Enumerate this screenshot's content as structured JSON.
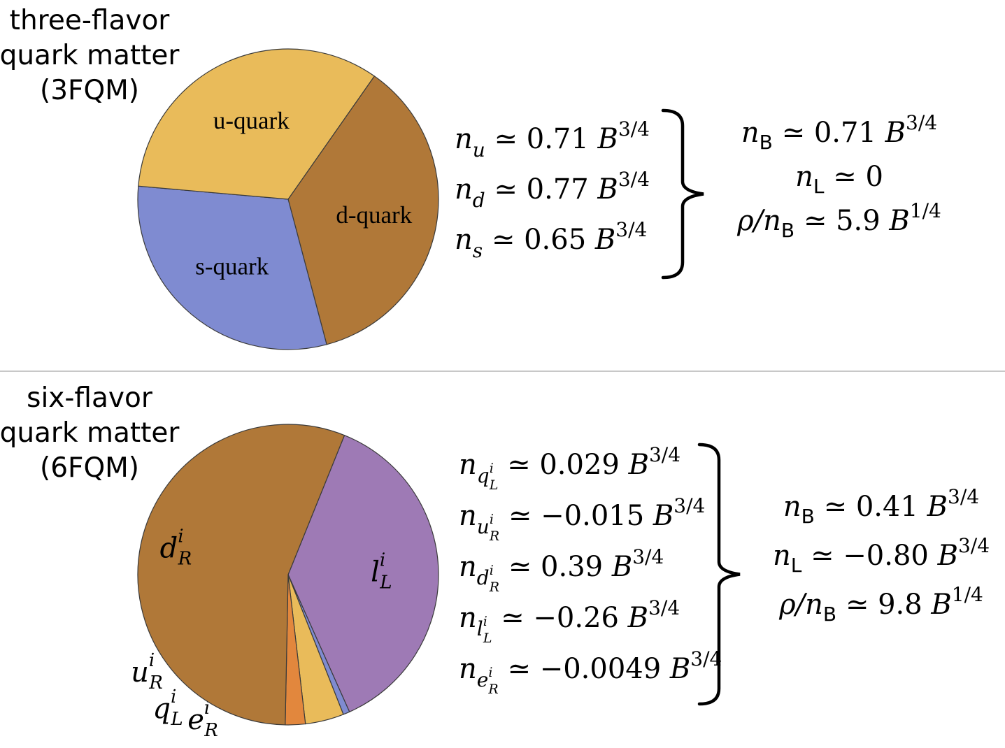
{
  "chart_data": [
    {
      "type": "pie",
      "title_lines": [
        "three-flavor",
        "quark matter",
        "(3FQM)"
      ],
      "start_angle_deg": 55,
      "direction": "clockwise",
      "slices": [
        {
          "label": "d-quark",
          "math": null,
          "value": 0.77,
          "color": "#b07838"
        },
        {
          "label": "s-quark",
          "math": null,
          "value": 0.65,
          "color": "#7f8bd1"
        },
        {
          "label": "u-quark",
          "math": null,
          "value": 0.71,
          "color": "#e9bb5a"
        }
      ],
      "densities": [
        {
          "sym": "n",
          "sub": "u",
          "subsub": null,
          "subsup": null,
          "rel": "≃",
          "value": "0.71",
          "unit": "B",
          "exp": "3/4"
        },
        {
          "sym": "n",
          "sub": "d",
          "subsub": null,
          "subsup": null,
          "rel": "≃",
          "value": "0.77",
          "unit": "B",
          "exp": "3/4"
        },
        {
          "sym": "n",
          "sub": "s",
          "subsub": null,
          "subsup": null,
          "rel": "≃",
          "value": "0.65",
          "unit": "B",
          "exp": "3/4"
        }
      ],
      "totals": [
        {
          "pre": "",
          "sym": "n",
          "sub": "B",
          "rel": "≃",
          "value": "0.71",
          "unit": "B",
          "exp": "3/4"
        },
        {
          "pre": "",
          "sym": "n",
          "sub": "L",
          "rel": "≃",
          "value": "0",
          "unit": "",
          "exp": ""
        },
        {
          "pre": "ρ/",
          "sym": "n",
          "sub": "B",
          "rel": "≃",
          "value": "5.9",
          "unit": "B",
          "exp": "1/4"
        }
      ]
    },
    {
      "type": "pie",
      "title_lines": [
        "six-flavor",
        "quark matter",
        "(6FQM)"
      ],
      "start_angle_deg": 68,
      "direction": "clockwise",
      "slices": [
        {
          "label": "l_L^i",
          "math": {
            "base": "l",
            "sub": "L",
            "sup": "i"
          },
          "value": 0.26,
          "color": "#9e7ab5"
        },
        {
          "label": "e_R^i",
          "math": {
            "base": "e",
            "sub": "R",
            "sup": "i"
          },
          "value": 0.0049,
          "color": "#7f8bd1"
        },
        {
          "label": "q_L^i",
          "math": {
            "base": "q",
            "sub": "L",
            "sup": "i"
          },
          "value": 0.029,
          "color": "#e9bb5a"
        },
        {
          "label": "u_R^i",
          "math": {
            "base": "u",
            "sub": "R",
            "sup": "i"
          },
          "value": 0.015,
          "color": "#e2873d"
        },
        {
          "label": "d_R^i",
          "math": {
            "base": "d",
            "sub": "R",
            "sup": "i"
          },
          "value": 0.39,
          "color": "#b07838"
        }
      ],
      "densities": [
        {
          "sym": "n",
          "sub": "q",
          "subsub": "L",
          "subsup": "i",
          "rel": "≃",
          "value": "0.029",
          "unit": "B",
          "exp": "3/4"
        },
        {
          "sym": "n",
          "sub": "u",
          "subsub": "R",
          "subsup": "i",
          "rel": "≃",
          "value": "−0.015",
          "unit": "B",
          "exp": "3/4"
        },
        {
          "sym": "n",
          "sub": "d",
          "subsub": "R",
          "subsup": "i",
          "rel": "≃",
          "value": "0.39",
          "unit": "B",
          "exp": "3/4"
        },
        {
          "sym": "n",
          "sub": "l",
          "subsub": "L",
          "subsup": "i",
          "rel": "≃",
          "value": "−0.26",
          "unit": "B",
          "exp": "3/4"
        },
        {
          "sym": "n",
          "sub": "e",
          "subsub": "R",
          "subsup": "i",
          "rel": "≃",
          "value": "−0.0049",
          "unit": "B",
          "exp": "3/4"
        }
      ],
      "totals": [
        {
          "pre": "",
          "sym": "n",
          "sub": "B",
          "rel": "≃",
          "value": "0.41",
          "unit": "B",
          "exp": "3/4"
        },
        {
          "pre": "",
          "sym": "n",
          "sub": "L",
          "rel": "≃",
          "value": "−0.80",
          "unit": "B",
          "exp": "3/4"
        },
        {
          "pre": "ρ/",
          "sym": "n",
          "sub": "B",
          "rel": "≃",
          "value": "9.8",
          "unit": "B",
          "exp": "1/4"
        }
      ]
    }
  ],
  "colors": {
    "divider": "#c8c8c8",
    "slice_stroke": "#3a3a3a"
  }
}
